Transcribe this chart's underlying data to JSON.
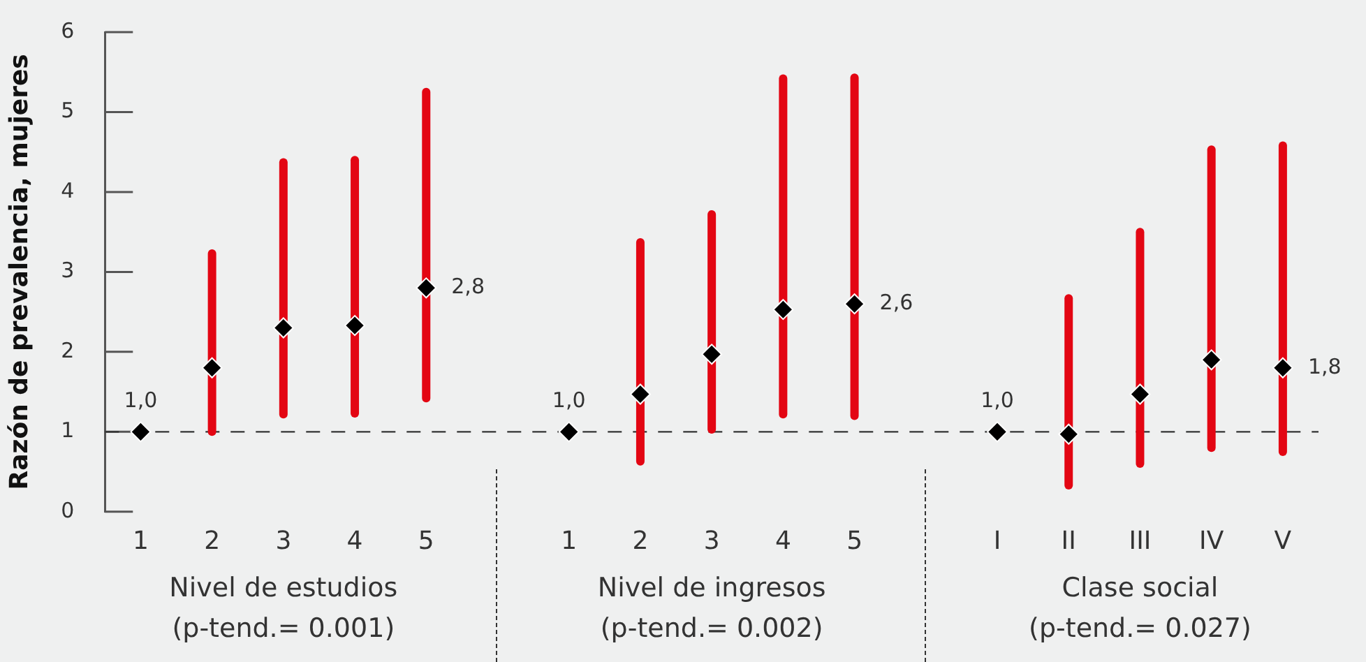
{
  "chart_data": {
    "type": "scatter",
    "ylabel": "Razón de prevalencia, mujeres",
    "categories": [
      "1",
      "2",
      "3",
      "4",
      "5",
      null,
      "1",
      "2",
      "3",
      "4",
      "5",
      null,
      "I",
      "II",
      "III",
      "IV",
      "V"
    ],
    "series": [
      {
        "color": "#000000",
        "values": [
          1.0,
          1.8,
          2.3,
          2.33,
          2.8,
          null,
          1.0,
          1.47,
          1.97,
          2.53,
          2.6,
          null,
          1.0,
          0.97,
          1.47,
          1.9,
          1.8
        ],
        "errors": [
          null,
          [
            1.0,
            3.23
          ],
          [
            1.22,
            4.37
          ],
          [
            1.23,
            4.4
          ],
          [
            1.42,
            5.25
          ],
          null,
          null,
          [
            0.63,
            3.37
          ],
          [
            1.03,
            3.72
          ],
          [
            1.22,
            5.42
          ],
          [
            1.2,
            5.43
          ],
          null,
          null,
          [
            0.33,
            2.67
          ],
          [
            0.6,
            3.5
          ],
          [
            0.8,
            4.53
          ],
          [
            0.75,
            4.58
          ]
        ],
        "value_labels": [
          "1,0",
          null,
          null,
          null,
          "2,8",
          null,
          "1,0",
          null,
          null,
          null,
          "2,6",
          null,
          "1,0",
          null,
          null,
          null,
          "1,8"
        ]
      }
    ],
    "ylim": [
      0,
      6
    ],
    "yticks": [
      0,
      1,
      2,
      3,
      4,
      5,
      6
    ],
    "marker": "diamond",
    "ref_lines": [
      {
        "axis": "y",
        "value": 1,
        "color": "#333333",
        "line_style": "dashed"
      }
    ],
    "annotations": [
      "Nivel de estudios\n(p-tend.= 0.001)",
      "Nivel de ingresos\n(p-tend.= 0.002)",
      "Clase social\n(p-tend.= 0.027)"
    ]
  }
}
